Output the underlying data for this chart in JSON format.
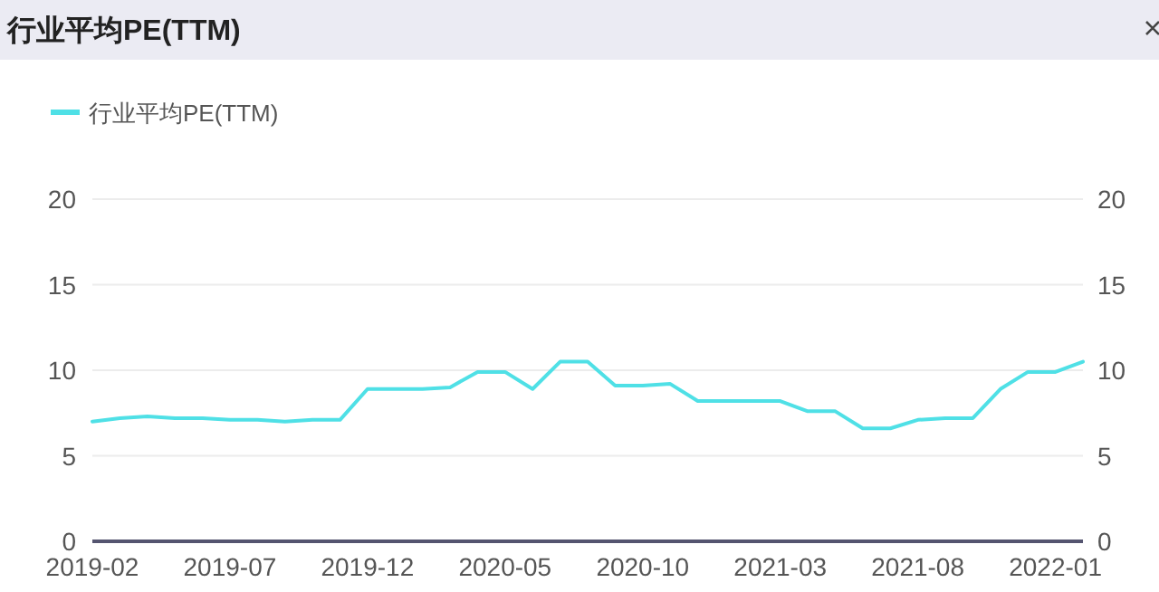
{
  "chart_data": {
    "type": "line",
    "title": "行业平均PE(TTM)",
    "categories": [
      "2019-02",
      null,
      null,
      null,
      null,
      "2019-07",
      null,
      null,
      null,
      null,
      "2019-12",
      null,
      null,
      null,
      null,
      "2020-05",
      null,
      null,
      null,
      null,
      "2020-10",
      null,
      null,
      null,
      null,
      "2021-03",
      null,
      null,
      null,
      null,
      "2021-08",
      null,
      null,
      null,
      null,
      "2022-01",
      null
    ],
    "series": [
      {
        "name": "行业平均PE(TTM)",
        "color": "#4fe0e6",
        "values": [
          7.0,
          7.2,
          7.3,
          7.2,
          7.2,
          7.1,
          7.1,
          7.0,
          7.1,
          7.1,
          8.9,
          8.9,
          8.9,
          9.0,
          9.9,
          9.9,
          8.9,
          10.5,
          10.5,
          9.1,
          9.1,
          9.2,
          8.2,
          8.2,
          8.2,
          8.2,
          7.6,
          7.6,
          6.6,
          6.6,
          7.1,
          7.2,
          7.2,
          8.9,
          9.9,
          9.9,
          10.5
        ]
      }
    ],
    "ylim": [
      0,
      20
    ],
    "yticks": [
      0,
      5,
      10,
      15,
      20
    ],
    "y2lim": [
      0,
      20
    ],
    "y2ticks": [
      0,
      5,
      10,
      15,
      20
    ],
    "grid": "y",
    "legend": "top left",
    "marker": "none",
    "line_style": "solid"
  }
}
